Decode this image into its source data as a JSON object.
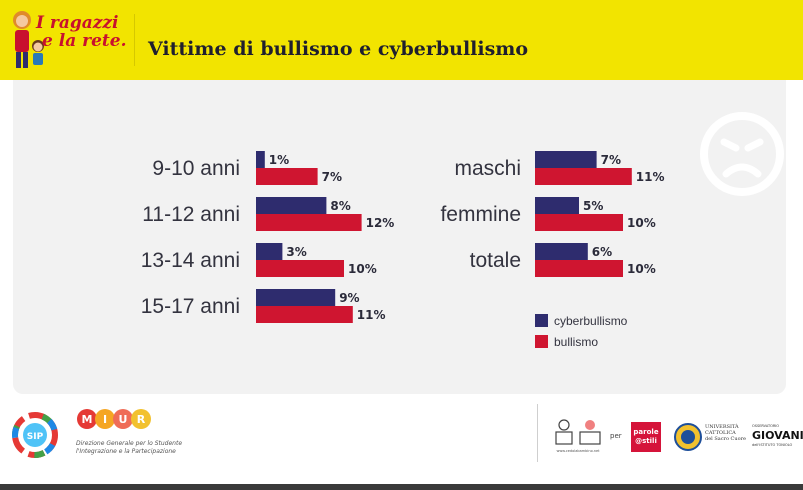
{
  "header": {
    "logo_line1": "I ragazzi",
    "logo_line2": "e la rete.",
    "title": "Vittime di bullismo e cyberbullismo"
  },
  "chart_data": [
    {
      "type": "bar",
      "orientation": "horizontal",
      "categories": [
        "9-10 anni",
        "11-12 anni",
        "13-14 anni",
        "15-17 anni"
      ],
      "series": [
        {
          "name": "cyberbullismo",
          "values": [
            1,
            8,
            3,
            9
          ]
        },
        {
          "name": "bullismo",
          "values": [
            7,
            12,
            10,
            11
          ]
        }
      ],
      "value_unit": "%",
      "grid": false
    },
    {
      "type": "bar",
      "orientation": "horizontal",
      "categories": [
        "maschi",
        "femmine",
        "totale"
      ],
      "series": [
        {
          "name": "cyberbullismo",
          "values": [
            7,
            5,
            6
          ]
        },
        {
          "name": "bullismo",
          "values": [
            11,
            10,
            10
          ]
        }
      ],
      "value_unit": "%",
      "grid": false,
      "legend": "bottom"
    }
  ],
  "colors": {
    "cyberbullismo": "#2e2c6e",
    "bullismo": "#cf1530",
    "header": "#f2e400"
  },
  "footer": {
    "sip_label": "SIP",
    "miur_letters": [
      "M",
      "I",
      "U",
      "R"
    ],
    "miur_caption_line1": "Direzione Generale per lo Studente",
    "miur_caption_line2": "l'Integrazione e la Partecipazione",
    "partner_url": "www.cedolabambino.net",
    "per_text": "per",
    "parole_line1": "parole",
    "parole_line2": "@stili",
    "cattolica_line1": "UNIVERSITÀ",
    "cattolica_line2": "CATTOLICA",
    "cattolica_line3": "del Sacro Cuore",
    "giovani_top": "OSSERVATORIO",
    "giovani_name": "GIOVANI",
    "giovani_sub": "dell'ISTITUTO TONIOLO"
  },
  "icons": {
    "mood": "sad-face-icon"
  }
}
